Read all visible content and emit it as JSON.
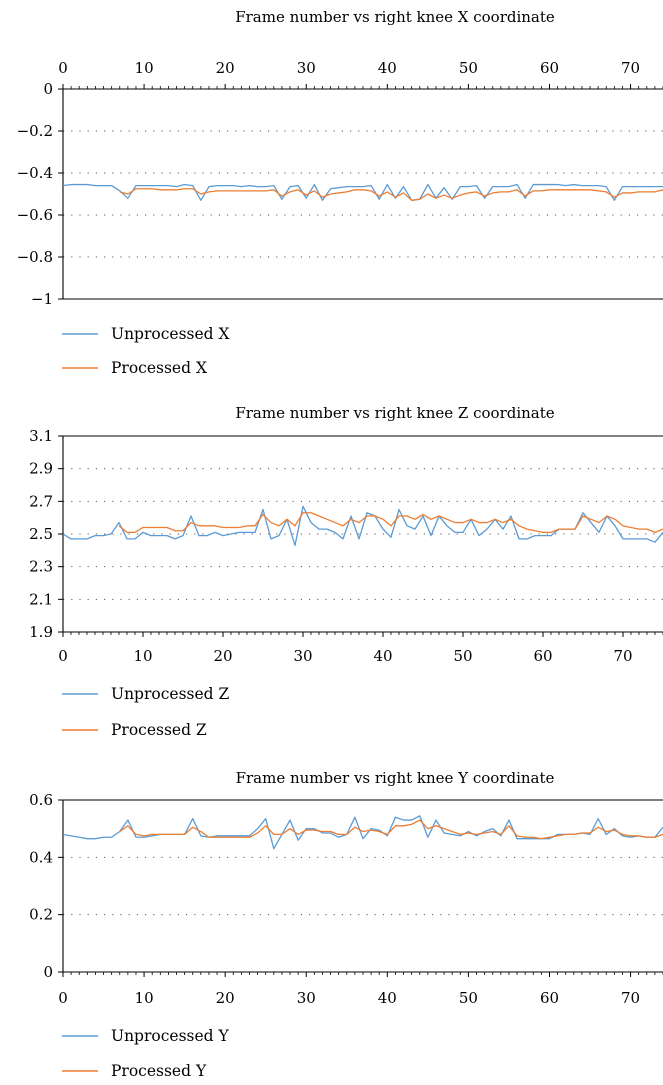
{
  "chart_data": [
    {
      "type": "line",
      "title": "Frame number vs right knee X coordinate",
      "xlabel": "",
      "ylabel": "",
      "x_axis_position": "top",
      "xlim": [
        0,
        74
      ],
      "ylim": [
        -1,
        0
      ],
      "x_ticks": [
        0,
        10,
        20,
        30,
        40,
        50,
        60,
        70
      ],
      "y_ticks": [
        0,
        -0.2,
        -0.4,
        -0.6,
        -0.8,
        -1
      ],
      "x_tick_labels": [
        "0",
        "10",
        "20",
        "30",
        "40",
        "50",
        "60",
        "70"
      ],
      "y_tick_labels": [
        "0",
        "−0.2",
        "−0.4",
        "−0.6",
        "−0.8",
        "−1"
      ],
      "grid": "horizontal dotted",
      "legend_position": "bottom-left",
      "series": [
        {
          "name": "Unprocessed X",
          "color": "#5b9bd5",
          "values": [
            -0.46,
            -0.455,
            -0.455,
            -0.455,
            -0.46,
            -0.46,
            -0.46,
            -0.485,
            -0.52,
            -0.46,
            -0.46,
            -0.46,
            -0.46,
            -0.46,
            -0.465,
            -0.455,
            -0.46,
            -0.53,
            -0.465,
            -0.46,
            -0.46,
            -0.46,
            -0.465,
            -0.46,
            -0.465,
            -0.465,
            -0.46,
            -0.525,
            -0.465,
            -0.46,
            -0.52,
            -0.455,
            -0.53,
            -0.475,
            -0.47,
            -0.465,
            -0.465,
            -0.465,
            -0.46,
            -0.525,
            -0.455,
            -0.52,
            -0.465,
            -0.53,
            -0.525,
            -0.455,
            -0.52,
            -0.47,
            -0.525,
            -0.465,
            -0.465,
            -0.46,
            -0.52,
            -0.465,
            -0.465,
            -0.465,
            -0.455,
            -0.52,
            -0.455,
            -0.455,
            -0.455,
            -0.455,
            -0.46,
            -0.455,
            -0.46,
            -0.46,
            -0.46,
            -0.465,
            -0.53,
            -0.465,
            -0.465,
            -0.465,
            -0.465,
            -0.465,
            -0.465,
            -0.46
          ]
        },
        {
          "name": "Processed X",
          "color": "#ed7d31",
          "values": [
            null,
            null,
            null,
            null,
            null,
            null,
            null,
            -0.49,
            -0.5,
            -0.475,
            -0.475,
            -0.475,
            -0.48,
            -0.48,
            -0.48,
            -0.475,
            -0.475,
            -0.5,
            -0.49,
            -0.485,
            -0.485,
            -0.485,
            -0.485,
            -0.485,
            -0.485,
            -0.485,
            -0.48,
            -0.51,
            -0.49,
            -0.48,
            -0.505,
            -0.485,
            -0.515,
            -0.5,
            -0.495,
            -0.49,
            -0.48,
            -0.48,
            -0.485,
            -0.51,
            -0.49,
            -0.515,
            -0.495,
            -0.53,
            -0.525,
            -0.5,
            -0.52,
            -0.505,
            -0.52,
            -0.505,
            -0.495,
            -0.49,
            -0.51,
            -0.495,
            -0.49,
            -0.49,
            -0.48,
            -0.51,
            -0.485,
            -0.485,
            -0.48,
            -0.48,
            -0.48,
            -0.48,
            -0.48,
            -0.48,
            -0.485,
            -0.49,
            -0.515,
            -0.495,
            -0.495,
            -0.49,
            -0.49,
            -0.49,
            -0.48,
            -0.48
          ]
        }
      ]
    },
    {
      "type": "line",
      "title": "Frame number vs right knee Z coordinate",
      "xlabel": "",
      "ylabel": "",
      "x_axis_position": "bottom",
      "xlim": [
        0,
        75
      ],
      "ylim": [
        1.9,
        3.1
      ],
      "x_ticks": [
        0,
        10,
        20,
        30,
        40,
        50,
        60,
        70
      ],
      "y_ticks": [
        1.9,
        2.1,
        2.3,
        2.5,
        2.7,
        2.9,
        3.1
      ],
      "x_tick_labels": [
        "0",
        "10",
        "20",
        "30",
        "40",
        "50",
        "60",
        "70"
      ],
      "y_tick_labels": [
        "1.9",
        "2.1",
        "2.3",
        "2.5",
        "2.7",
        "2.9",
        "3.1"
      ],
      "grid": "horizontal dotted",
      "legend_position": "bottom-left",
      "series": [
        {
          "name": "Unprocessed Z",
          "color": "#5b9bd5",
          "values": [
            2.5,
            2.47,
            2.47,
            2.47,
            2.49,
            2.49,
            2.5,
            2.57,
            2.47,
            2.47,
            2.51,
            2.49,
            2.49,
            2.49,
            2.47,
            2.49,
            2.61,
            2.49,
            2.49,
            2.51,
            2.49,
            2.5,
            2.51,
            2.51,
            2.51,
            2.65,
            2.47,
            2.49,
            2.59,
            2.43,
            2.67,
            2.57,
            2.53,
            2.53,
            2.51,
            2.47,
            2.61,
            2.47,
            2.63,
            2.61,
            2.53,
            2.48,
            2.65,
            2.55,
            2.53,
            2.61,
            2.49,
            2.61,
            2.55,
            2.51,
            2.51,
            2.59,
            2.49,
            2.53,
            2.59,
            2.53,
            2.61,
            2.47,
            2.47,
            2.49,
            2.49,
            2.49,
            2.53,
            2.53,
            2.53,
            2.63,
            2.57,
            2.51,
            2.61,
            2.55,
            2.47,
            2.47,
            2.47,
            2.47,
            2.45,
            2.51
          ]
        },
        {
          "name": "Processed Z",
          "color": "#ed7d31",
          "values": [
            null,
            null,
            null,
            null,
            null,
            null,
            null,
            2.55,
            2.51,
            2.51,
            2.54,
            2.54,
            2.54,
            2.54,
            2.52,
            2.52,
            2.57,
            2.55,
            2.55,
            2.55,
            2.54,
            2.54,
            2.54,
            2.55,
            2.55,
            2.62,
            2.57,
            2.55,
            2.59,
            2.55,
            2.63,
            2.63,
            2.61,
            2.59,
            2.57,
            2.55,
            2.59,
            2.57,
            2.61,
            2.61,
            2.59,
            2.55,
            2.61,
            2.61,
            2.59,
            2.62,
            2.59,
            2.61,
            2.59,
            2.57,
            2.57,
            2.59,
            2.57,
            2.57,
            2.59,
            2.57,
            2.59,
            2.55,
            2.53,
            2.52,
            2.51,
            2.51,
            2.53,
            2.53,
            2.53,
            2.61,
            2.59,
            2.57,
            2.61,
            2.59,
            2.55,
            2.54,
            2.53,
            2.53,
            2.51,
            2.53
          ]
        }
      ]
    },
    {
      "type": "line",
      "title": "Frame number vs right knee Y coordinate",
      "xlabel": "",
      "ylabel": "",
      "x_axis_position": "bottom",
      "xlim": [
        0,
        74
      ],
      "ylim": [
        0,
        0.6
      ],
      "x_ticks": [
        0,
        10,
        20,
        30,
        40,
        50,
        60,
        70
      ],
      "y_ticks": [
        0,
        0.2,
        0.4,
        0.6
      ],
      "x_tick_labels": [
        "0",
        "10",
        "20",
        "30",
        "40",
        "50",
        "60",
        "70"
      ],
      "y_tick_labels": [
        "0",
        "0.2",
        "0.4",
        "0.6"
      ],
      "grid": "horizontal dotted",
      "legend_position": "bottom-left",
      "series": [
        {
          "name": "Unprocessed Y",
          "color": "#5b9bd5",
          "values": [
            0.48,
            0.475,
            0.47,
            0.465,
            0.465,
            0.47,
            0.47,
            0.49,
            0.53,
            0.47,
            0.47,
            0.475,
            0.48,
            0.48,
            0.48,
            0.48,
            0.535,
            0.475,
            0.47,
            0.475,
            0.475,
            0.475,
            0.475,
            0.475,
            0.5,
            0.535,
            0.43,
            0.48,
            0.53,
            0.46,
            0.5,
            0.5,
            0.485,
            0.485,
            0.47,
            0.48,
            0.54,
            0.465,
            0.5,
            0.495,
            0.475,
            0.54,
            0.53,
            0.53,
            0.545,
            0.47,
            0.53,
            0.485,
            0.48,
            0.475,
            0.49,
            0.475,
            0.49,
            0.5,
            0.475,
            0.53,
            0.465,
            0.465,
            0.465,
            0.465,
            0.465,
            0.48,
            0.48,
            0.48,
            0.485,
            0.48,
            0.535,
            0.48,
            0.5,
            0.475,
            0.47,
            0.475,
            0.47,
            0.47,
            0.505
          ]
        },
        {
          "name": "Processed Y",
          "color": "#ed7d31",
          "values": [
            null,
            null,
            null,
            null,
            null,
            null,
            null,
            0.49,
            0.51,
            0.48,
            0.475,
            0.48,
            0.48,
            0.48,
            0.48,
            0.48,
            0.505,
            0.49,
            0.47,
            0.47,
            0.47,
            0.47,
            0.47,
            0.47,
            0.485,
            0.51,
            0.48,
            0.48,
            0.5,
            0.48,
            0.495,
            0.495,
            0.49,
            0.49,
            0.48,
            0.48,
            0.505,
            0.49,
            0.495,
            0.49,
            0.48,
            0.51,
            0.51,
            0.515,
            0.53,
            0.5,
            0.51,
            0.5,
            0.49,
            0.48,
            0.485,
            0.48,
            0.485,
            0.49,
            0.48,
            0.51,
            0.475,
            0.47,
            0.47,
            0.465,
            0.47,
            0.475,
            0.48,
            0.48,
            0.485,
            0.485,
            0.505,
            0.49,
            0.495,
            0.48,
            0.475,
            0.475,
            0.47,
            0.47,
            0.48
          ]
        }
      ]
    }
  ]
}
